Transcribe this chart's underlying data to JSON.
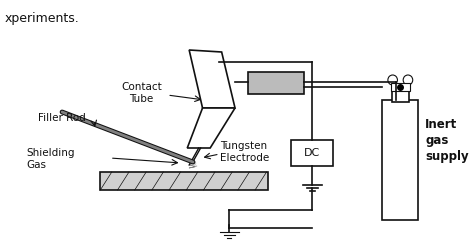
{
  "bg_color": "#f5f5f5",
  "line_color": "#111111",
  "text_color": "#111111",
  "title_text": "xperiments.",
  "labels": {
    "contact_tube": "Contact\nTube",
    "filler_rod": "Filler Rod",
    "shielding_gas": "Shielding\nGas",
    "tungsten_electrode": "Tungsten\nElectrode",
    "dc": "DC",
    "inert_gas": "Inert\ngas\nsupply"
  }
}
